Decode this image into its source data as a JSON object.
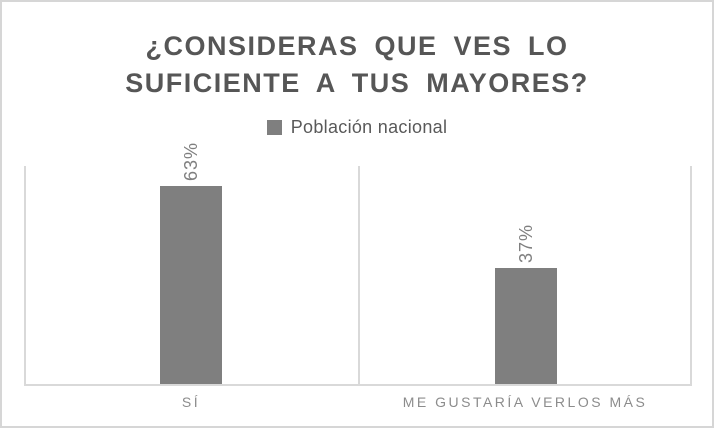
{
  "chart": {
    "title_lines": [
      "¿CONSIDERAS QUE VES LO",
      "SUFICIENTE A TUS MAYORES?"
    ]
  },
  "chart_data": {
    "type": "bar",
    "title": "¿CONSIDERAS QUE VES LO SUFICIENTE A TUS MAYORES?",
    "categories": [
      "SÍ",
      "ME GUSTARÍA VERLOS MÁS"
    ],
    "series": [
      {
        "name": "Población nacional",
        "values": [
          63,
          37
        ]
      }
    ],
    "value_labels": [
      "63%",
      "37%"
    ],
    "unit": "%",
    "ylim": [
      0,
      70
    ],
    "xlabel": "",
    "ylabel": "",
    "grid": "category-boundary-vertical-lines",
    "legend_position": "top",
    "data_label_rotation": -90,
    "bar_color": "#7f7f7f"
  },
  "colors": {
    "background": "#ffffff",
    "frame_border": "#d6d6d6",
    "title_text": "#565656",
    "legend_text": "#595959",
    "bar_fill": "#7f7f7f",
    "data_label_text": "#7f7f7f",
    "category_label_text": "#8c8c8c",
    "axis_gridline": "#d9d9d9"
  }
}
